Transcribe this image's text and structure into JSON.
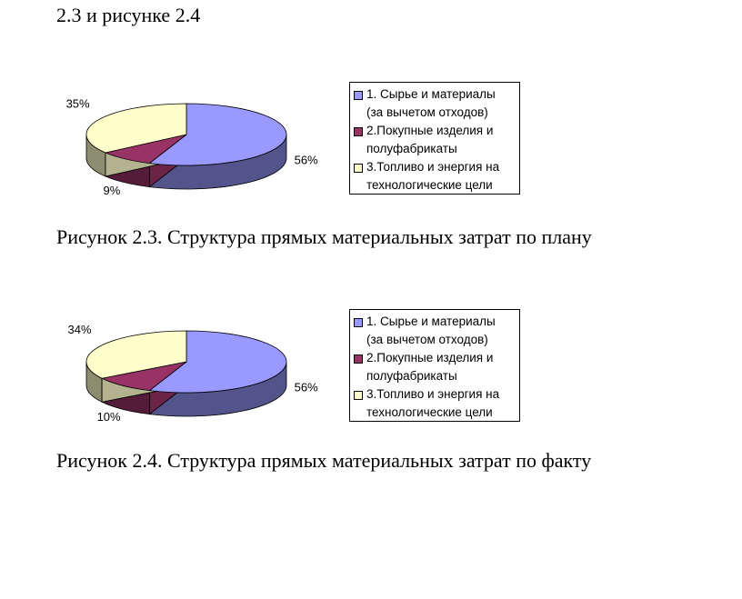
{
  "header_text": "2.3 и рисунке 2.4",
  "colors": {
    "raw": "#9999ff",
    "purchased": "#993366",
    "fuel": "#ffffcc"
  },
  "charts": [
    {
      "caption": "Рисунок 2.3. Структура прямых материальных затрат по плану",
      "legend": [
        "1. Сырье и материалы\n(за вычетом отходов)",
        "2.Покупные изделия и\nполуфабрикаты",
        "3.Топливо и энергия на\nтехнологические цели"
      ]
    },
    {
      "caption": "Рисунок 2.4. Структура прямых материальных затрат по факту",
      "legend": [
        "1. Сырье и материалы\n(за вычетом отходов)",
        "2.Покупные изделия и\nполуфабрикаты",
        "3.Топливо и энергия на\nтехнологические цели"
      ]
    }
  ],
  "chart_data": [
    {
      "type": "pie",
      "categories": [
        "1. Сырье и материалы (за вычетом отходов)",
        "2.Покупные изделия и полуфабрикаты",
        "3.Топливо и энергия на технологические цели"
      ],
      "values": [
        56,
        9,
        35
      ],
      "labels": [
        "56%",
        "9%",
        "35%"
      ],
      "legend_position": "right"
    },
    {
      "type": "pie",
      "categories": [
        "1. Сырье и материалы (за вычетом отходов)",
        "2.Покупные изделия и полуфабрикаты",
        "3.Топливо и энергия на технологические цели"
      ],
      "values": [
        56,
        10,
        34
      ],
      "labels": [
        "56%",
        "10%",
        "34%"
      ],
      "legend_position": "right"
    }
  ]
}
